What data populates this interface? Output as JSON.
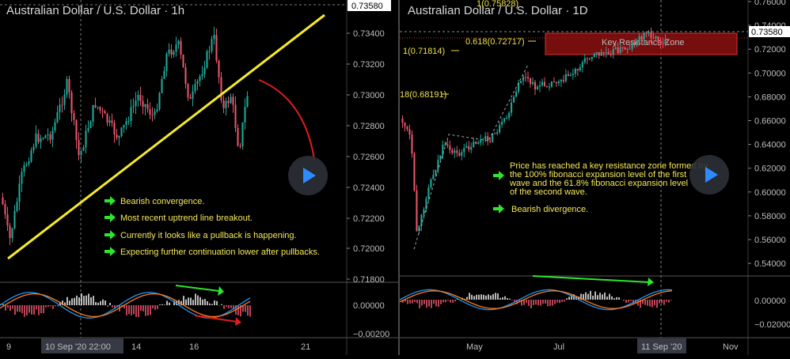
{
  "left": {
    "title": "Australian Dollar / U.S. Dollar · 1h",
    "price_tag": "0.73580",
    "y_ticks": [
      "0.73400",
      "0.73200",
      "0.73000",
      "0.72800",
      "0.72600",
      "0.72400",
      "0.72200",
      "0.72000",
      "0.71800"
    ],
    "osc_ticks": [
      "0.00000",
      "−0.00200"
    ],
    "x_ticks": [
      "9",
      "14",
      "16",
      "21"
    ],
    "x_cursor": "10 Sep '20   22:00",
    "notes": [
      "Bearish convergence.",
      "Most recent uptrend line breakout.",
      "Currently it looks like a pullback is happening.",
      "Expecting further continuation lower after pullbacks."
    ],
    "colors": {
      "trendline": "#f5ea2a",
      "arrow": "#e01c1c",
      "check": "#2ee62e",
      "note": "#f5e85a",
      "bull": "#1fa89a",
      "bear": "#e8556a"
    },
    "play_icon": "play-icon"
  },
  "right": {
    "title": "Australian Dollar / U.S. Dollar · 1D",
    "price_tag": "0.73580",
    "y_ticks": [
      "0.76000",
      "0.74000",
      "0.72000",
      "0.70000",
      "0.68000",
      "0.66000",
      "0.64000",
      "0.62000",
      "0.60000",
      "0.58000",
      "0.56000",
      "0.54000"
    ],
    "osc_ticks": [
      "0.00000",
      "−0.02000"
    ],
    "x_ticks": [
      "May",
      "Jul",
      "Nov"
    ],
    "x_cursor": "11 Sep '20",
    "fib_levels": [
      "1(0.75828)",
      "0.618(0.72717)",
      "1(0.71814)",
      "18(0.68191)"
    ],
    "zone_label": "Key Resistance Zone",
    "note_lines": [
      "Price has reached a key resistance zone formed by",
      "the 100% fibonacci expansion level of the first",
      "wave and the 61.8% fibonacci expansion level",
      "of the second wave."
    ],
    "note2": "Bearish divergence.",
    "colors": {
      "zone_fill": "#8c1010",
      "zone_border": "#e03030",
      "zone_text": "#f2e04a",
      "check": "#2ee62e"
    },
    "play_icon": "play-icon"
  }
}
